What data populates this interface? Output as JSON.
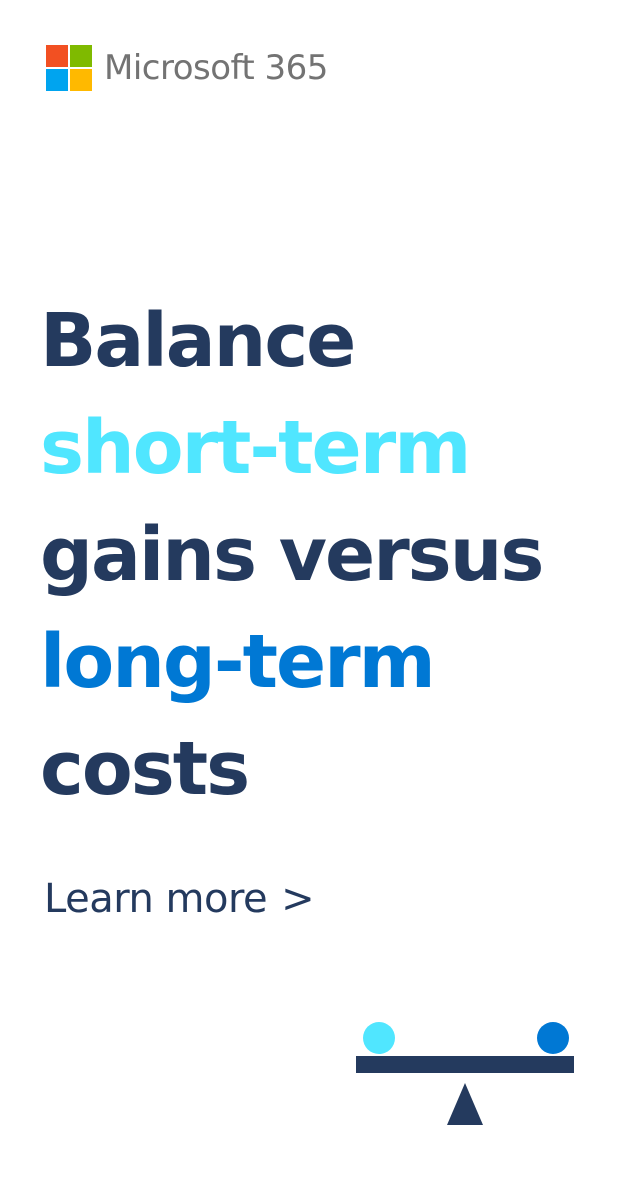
{
  "brand": {
    "name": "Microsoft 365",
    "logo_colors": [
      "#f25022",
      "#7fba00",
      "#00a4ef",
      "#ffb900"
    ]
  },
  "headline": {
    "lines": [
      {
        "text": "Balance",
        "color": "#243a5e"
      },
      {
        "text": "short-term",
        "color": "#50e6ff"
      },
      {
        "text": "gains versus",
        "color": "#243a5e"
      },
      {
        "text": "long-term",
        "color": "#0078d4"
      },
      {
        "text": "costs",
        "color": "#243a5e"
      }
    ]
  },
  "cta": {
    "label": "Learn more",
    "chevron": ">"
  },
  "illustration": {
    "name": "balance-scale",
    "colors": {
      "left_ball": "#50e6ff",
      "right_ball": "#0078d4",
      "beam": "#243a5e",
      "fulcrum": "#243a5e"
    }
  }
}
